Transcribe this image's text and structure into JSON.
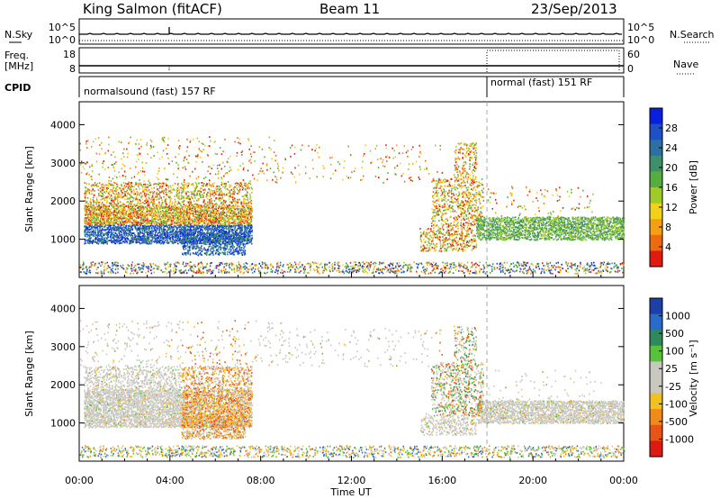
{
  "header": {
    "station": "King Salmon (fitACF)",
    "beam": "Beam 11",
    "date": "23/Sep/2013"
  },
  "top_panels": {
    "nsky_label": "N.Sky",
    "nsearch_label": "N.Search",
    "freq_label_line1": "Freq.",
    "freq_label_line2": "[MHz]",
    "nave_label": "Nave",
    "cpid_label": "CPID",
    "nsky_ticks": [
      "10^5",
      "10^0"
    ],
    "nsearch_ticks": [
      "10^5",
      "10^0"
    ],
    "freq_ticks": [
      "18",
      "8"
    ],
    "nave_ticks": [
      "60",
      "0"
    ],
    "cpid_segments": [
      {
        "label": "normalsound (fast) 157 RF",
        "start_hour": 0,
        "end_hour": 18
      },
      {
        "label": "normal (fast) 151 RF",
        "start_hour": 18,
        "end_hour": 24
      }
    ]
  },
  "chart_data": [
    {
      "type": "heatmap",
      "name": "power",
      "ylabel": "Slant Range [km]",
      "colorbar_label": "Power [dB]",
      "colorbar_ticks": [
        "28",
        "24",
        "20",
        "16",
        "12",
        "8",
        "4"
      ],
      "colorbar_colors": [
        "#0a1ee0",
        "#1e50c8",
        "#2c6fa0",
        "#3e8f6a",
        "#58ad40",
        "#9ecb2a",
        "#f2d218",
        "#f5a012",
        "#ee6a10",
        "#e01a10"
      ],
      "yticks": [
        "1000",
        "2000",
        "3000",
        "4000"
      ],
      "ylim": [
        0,
        4600
      ],
      "xlim": [
        0,
        24
      ]
    },
    {
      "type": "heatmap",
      "name": "velocity",
      "ylabel": "Slant Range [km]",
      "colorbar_label": "Velocity [m s⁻¹]",
      "colorbar_ticks": [
        "1000",
        "500",
        "100",
        "25",
        "-25",
        "-100",
        "-500",
        "-1000"
      ],
      "colorbar_colors": [
        "#1c3fa8",
        "#2a6ac8",
        "#2e8a5a",
        "#5ac23a",
        "#c8c8c0",
        "#c8c8c0",
        "#f2c020",
        "#f08a18",
        "#e85418",
        "#dc1a12"
      ],
      "yticks": [
        "1000",
        "2000",
        "3000",
        "4000"
      ],
      "ylim": [
        0,
        4600
      ],
      "xlim": [
        0,
        24
      ]
    }
  ],
  "x_axis": {
    "ticks": [
      "00:00",
      "04:00",
      "08:00",
      "12:00",
      "16:00",
      "20:00",
      "00:00"
    ],
    "label": "Time UT"
  }
}
